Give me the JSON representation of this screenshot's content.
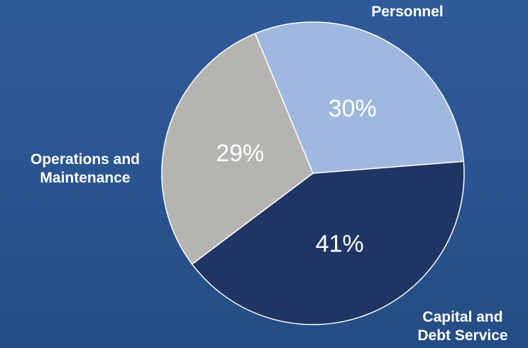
{
  "chart_data": {
    "type": "pie",
    "title": "",
    "start_angle_deg": -112.5,
    "direction": "clockwise",
    "slices": [
      {
        "label": "Personnel",
        "label_lines": [
          "Personnel"
        ],
        "value": 30,
        "value_label": "30%",
        "color": "#9fb8e0"
      },
      {
        "label": "Capital and Debt Service",
        "label_lines": [
          "Capital and",
          "Debt Service"
        ],
        "value": 41,
        "value_label": "41%",
        "color": "#1f3563"
      },
      {
        "label": "Operations and Maintenance",
        "label_lines": [
          "Operations and",
          "Maintenance"
        ],
        "value": 29,
        "value_label": "29%",
        "color": "#b5b4b1"
      }
    ],
    "legend": "none",
    "background_color": "#2b5590"
  }
}
